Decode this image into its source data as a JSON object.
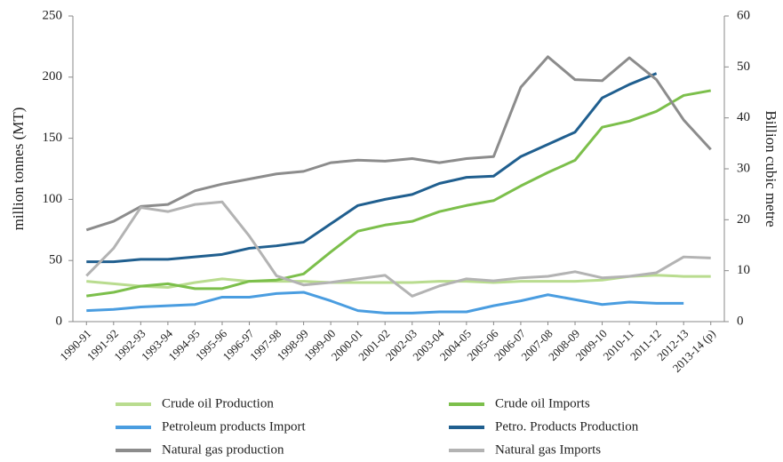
{
  "chart_data": {
    "type": "line",
    "y_label": "million tonnes (MT)",
    "y2_label": "Billion cubic metre",
    "categories": [
      "1990-91",
      "1991-92",
      "1992-93",
      "1993-94",
      "1994-95",
      "1995-96",
      "1996-97",
      "1997-98",
      "1998-99",
      "1999-00",
      "2000-01",
      "2001-02",
      "2002-03",
      "2003-04",
      "2004-05",
      "2005-06",
      "2006-07",
      "2007-08",
      "2008-09",
      "2009-10",
      "2010-11",
      "2011-12",
      "2012-13",
      "2013-14 (p)"
    ],
    "ylim": [
      0,
      250
    ],
    "yticks": [
      0,
      50,
      100,
      150,
      200,
      250
    ],
    "y2lim": [
      0,
      60
    ],
    "y2ticks": [
      0,
      10,
      20,
      30,
      40,
      50,
      60
    ],
    "series": [
      {
        "name": "Crude oil Production",
        "color": "#b9dc8f",
        "values": [
          33,
          31,
          29,
          28,
          32,
          35,
          33,
          33,
          33,
          32,
          32,
          32,
          32,
          33,
          33,
          32,
          33,
          33,
          33,
          34,
          37,
          38,
          37,
          37
        ]
      },
      {
        "name": "Crude oil Imports",
        "color": "#7cbf4b",
        "values": [
          21,
          24,
          29,
          31,
          27,
          27,
          33,
          34,
          39,
          57,
          74,
          79,
          82,
          90,
          95,
          99,
          111,
          122,
          132,
          159,
          164,
          172,
          185,
          189
        ]
      },
      {
        "name": "Petroleum products Import",
        "color": "#4a9de0",
        "values": [
          9,
          10,
          12,
          13,
          14,
          20,
          20,
          23,
          24,
          17,
          9,
          7,
          7,
          8,
          8,
          13,
          17,
          22,
          18,
          14,
          16,
          15,
          15,
          null
        ]
      },
      {
        "name": "Petro. Products Production",
        "color": "#205f8f",
        "values": [
          49,
          49,
          51,
          51,
          53,
          55,
          60,
          62,
          65,
          80,
          95,
          100,
          104,
          113,
          118,
          119,
          135,
          145,
          155,
          183,
          194,
          203,
          null,
          null
        ]
      },
      {
        "name": "Natural gas production",
        "color": "#8c8c8c",
        "axis": "y2",
        "values": [
          18,
          19.7,
          22.6,
          23,
          25.7,
          27,
          28,
          29,
          29.5,
          31.2,
          31.7,
          31.5,
          32,
          31.2,
          32,
          32.4,
          46,
          52,
          47.5,
          47.3,
          51.8,
          47.5,
          39.6,
          33.8
        ]
      },
      {
        "name": "Natural gas Imports",
        "color": "#b3b3b3",
        "axis": "y2",
        "values": [
          9,
          14.4,
          22.4,
          21.6,
          23,
          23.5,
          16.8,
          9,
          7.2,
          7.7,
          8.4,
          9.1,
          5,
          7,
          8.4,
          8,
          8.6,
          8.9,
          9.8,
          8.6,
          8.9,
          9.6,
          12.7,
          12.5
        ]
      }
    ]
  }
}
